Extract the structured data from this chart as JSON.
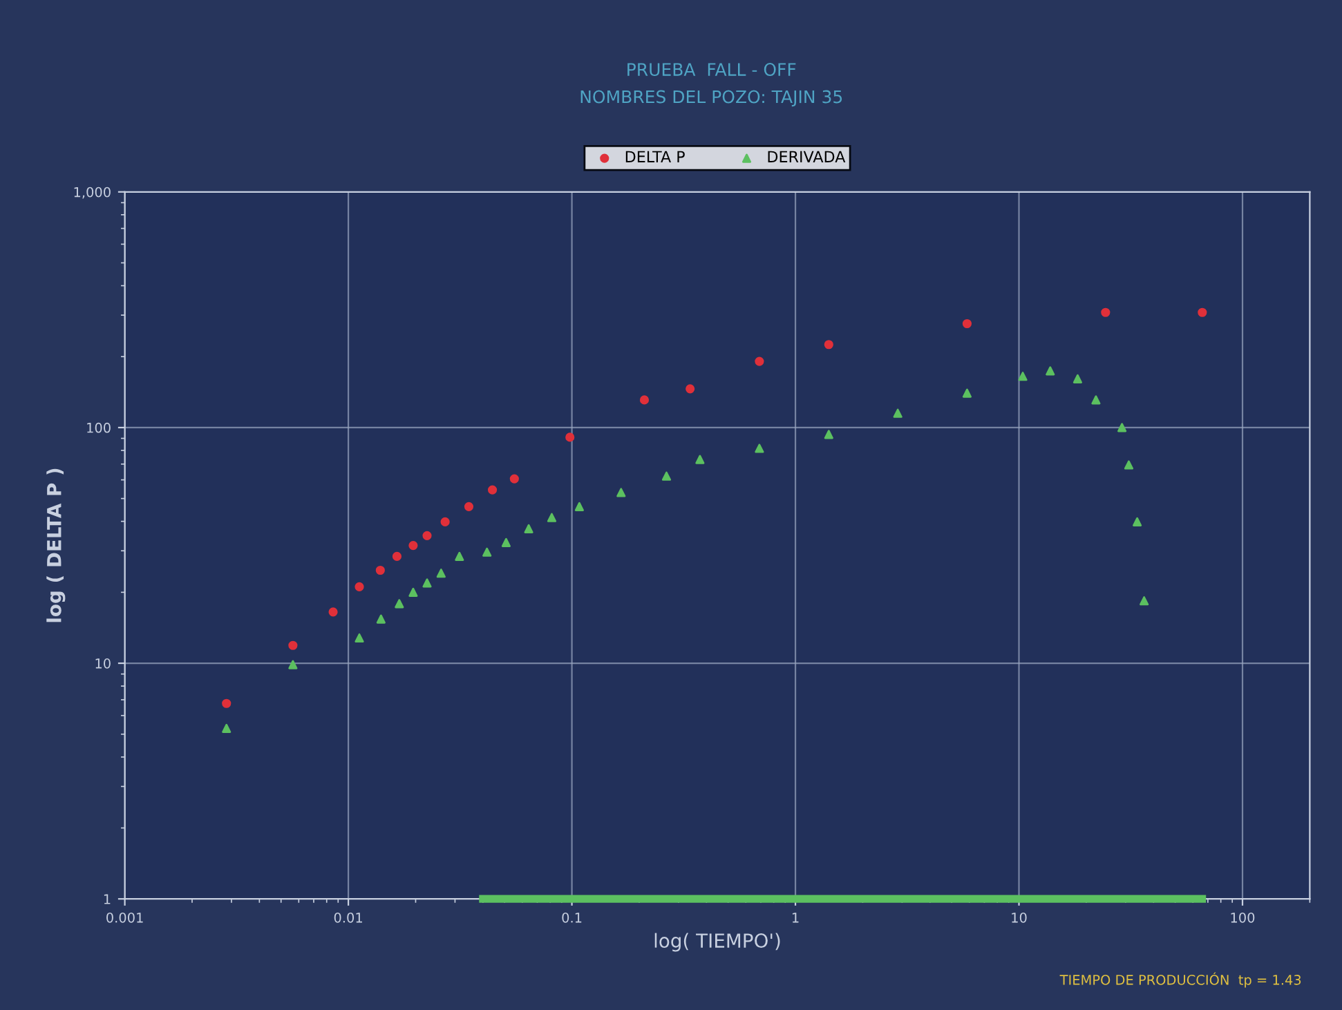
{
  "chart_data": {
    "type": "scatter",
    "title": "PRUEBA  FALL - OFF",
    "subtitle": "NOMBRES DEL POZO: TAJIN 35",
    "xlabel": "log( TIEMPO')",
    "ylabel": "log ( DELTA P )",
    "log": "xy",
    "grid": true,
    "legend": "top",
    "xlim": [
      0.001,
      200
    ],
    "ylim": [
      1,
      1000
    ],
    "xticks": [
      0.001,
      0.01,
      0.1,
      1,
      10,
      100
    ],
    "yticks": [
      1,
      10,
      100,
      {
        "value": 1000,
        "label": "1,000"
      }
    ],
    "annotations": [
      "TIEMPO DE PRODUCCIÓN  tp = 1.43"
    ],
    "series": [
      {
        "name": "DELTA P",
        "color": "#e0303a",
        "marker": "circle",
        "x": [
          0.00285,
          0.00565,
          0.00855,
          0.0112,
          0.0139,
          0.0165,
          0.0195,
          0.0225,
          0.0271,
          0.0346,
          0.0441,
          0.0553,
          0.098,
          0.211,
          0.338,
          0.69,
          1.41,
          5.86,
          24.4,
          66.1
        ],
        "values": [
          6.75,
          11.9,
          16.5,
          21.1,
          24.8,
          28.4,
          31.6,
          34.8,
          39.8,
          46.2,
          54.4,
          60.6,
          91,
          131,
          146,
          191,
          225,
          276,
          308,
          308
        ]
      },
      {
        "name": "DERIVADA",
        "color": "#5cc060",
        "marker": "triangle",
        "x": [
          0.00285,
          0.00565,
          0.0112,
          0.014,
          0.0169,
          0.0195,
          0.0225,
          0.026,
          0.0314,
          0.0417,
          0.0508,
          0.0641,
          0.0813,
          0.108,
          0.166,
          0.265,
          0.374,
          0.69,
          1.41,
          2.87,
          5.86,
          10.4,
          13.8,
          18.3,
          22.1,
          28.9,
          31.0,
          33.8,
          36.3
        ],
        "values": [
          5.29,
          9.86,
          12.8,
          15.4,
          17.9,
          20.0,
          21.9,
          24.1,
          28.4,
          29.6,
          32.5,
          37.2,
          41.5,
          46.2,
          53.0,
          62.2,
          73.2,
          81.6,
          93.5,
          115,
          140,
          165,
          174,
          161,
          131,
          100,
          69.4,
          39.8,
          18.4
        ]
      },
      {
        "type": "line",
        "color": "#5cc060",
        "x": [
          0.04,
          66
        ],
        "values": [
          1,
          1
        ]
      }
    ]
  }
}
